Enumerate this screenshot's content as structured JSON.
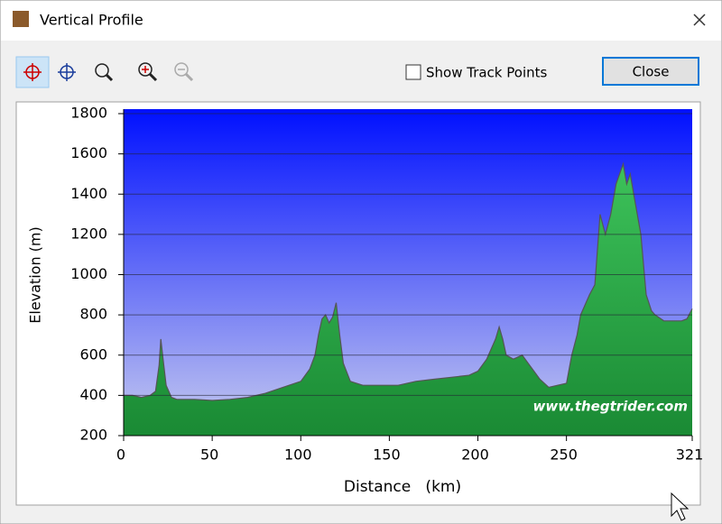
{
  "window": {
    "title": "Vertical Profile",
    "show_track_points": "Show Track Points",
    "close_button": "Close"
  },
  "chart_data": {
    "type": "area",
    "x_label": "Distance   (km)",
    "y_label": "Elevation (m)",
    "watermark": "www.thegtrider.com",
    "x": [
      0,
      5,
      10,
      15,
      18,
      20,
      21,
      22,
      24,
      27,
      30,
      40,
      50,
      60,
      70,
      80,
      90,
      100,
      105,
      108,
      110,
      112,
      114,
      116,
      118,
      120,
      122,
      124,
      128,
      135,
      145,
      155,
      165,
      175,
      185,
      195,
      200,
      205,
      208,
      210,
      212,
      214,
      216,
      220,
      225,
      230,
      235,
      240,
      245,
      250,
      253,
      256,
      258,
      260,
      263,
      266,
      269,
      272,
      275,
      278,
      280,
      282,
      284,
      286,
      288,
      292,
      295,
      298,
      300,
      305,
      310,
      315,
      318,
      321
    ],
    "values": [
      400,
      400,
      390,
      400,
      420,
      550,
      680,
      600,
      450,
      390,
      380,
      380,
      375,
      380,
      390,
      410,
      440,
      470,
      530,
      600,
      700,
      780,
      800,
      760,
      790,
      860,
      700,
      560,
      470,
      450,
      450,
      450,
      470,
      480,
      490,
      500,
      520,
      580,
      640,
      680,
      740,
      680,
      600,
      580,
      600,
      540,
      480,
      440,
      450,
      460,
      600,
      700,
      800,
      840,
      900,
      950,
      1300,
      1200,
      1300,
      1450,
      1500,
      1550,
      1450,
      1500,
      1400,
      1200,
      900,
      820,
      800,
      770,
      770,
      770,
      780,
      830
    ],
    "color": "#26a244",
    "xlim": [
      0,
      321
    ],
    "xticks": [
      0,
      50,
      100,
      150,
      200,
      250,
      321
    ],
    "ylim": [
      200,
      1800
    ],
    "yticks": [
      200,
      400,
      600,
      800,
      1000,
      1200,
      1400,
      1600,
      1800
    ],
    "grid": true
  }
}
